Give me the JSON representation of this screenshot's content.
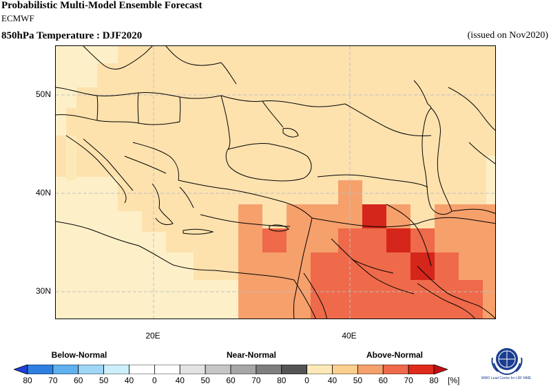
{
  "header": {
    "title": "Probabilistic Multi-Model Ensemble Forecast",
    "source": "ECMWF",
    "variable": "850hPa Temperature : DJF2020",
    "issued": "(issued on Nov2020)"
  },
  "map": {
    "lat_labels": [
      "50N",
      "40N",
      "30N"
    ],
    "lon_labels": [
      "20E",
      "40E"
    ]
  },
  "legend": {
    "groups": [
      "Below-Normal",
      "Near-Normal",
      "Above-Normal"
    ],
    "ticks": [
      "80",
      "70",
      "60",
      "50",
      "40",
      "0",
      "40",
      "50",
      "60",
      "70",
      "80",
      "0",
      "40",
      "50",
      "60",
      "70",
      "80"
    ],
    "unit": "[%]",
    "colors": [
      "#1f3fd9",
      "#2f7fe0",
      "#5fb0ee",
      "#9fd6f6",
      "#cdeffc",
      "#ffffff",
      "#ffffff",
      "#e3e3e3",
      "#c6c6c6",
      "#a6a6a6",
      "#7e7e7e",
      "#545454",
      "#fde9b8",
      "#fbcf8e",
      "#f6a06c",
      "#ee6a4a",
      "#e02a1c",
      "#c41010"
    ]
  },
  "logo": {
    "text": "WMO Lead Centre for LRF MME"
  }
}
